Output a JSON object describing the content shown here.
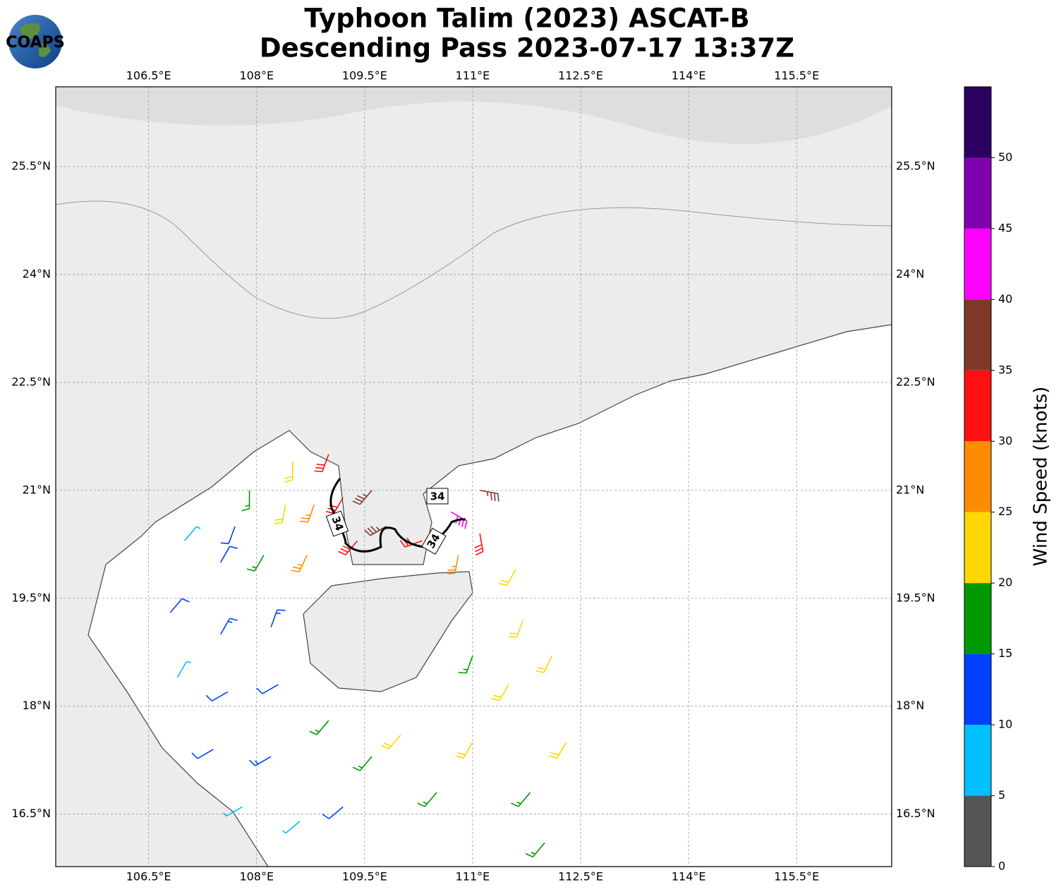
{
  "chart_data": {
    "type": "wind-barb-map",
    "title": "Typhoon Talim (2023) ASCAT-B",
    "subtitle": "Descending Pass 2023-07-17 13:37Z",
    "logo": "COAPS",
    "xlim": [
      105.21,
      116.82
    ],
    "ylim": [
      15.77,
      26.61
    ],
    "xticks": [
      {
        "value": 106.5,
        "label": "106.5°E"
      },
      {
        "value": 108,
        "label": "108°E"
      },
      {
        "value": 109.5,
        "label": "109.5°E"
      },
      {
        "value": 111,
        "label": "111°E"
      },
      {
        "value": 112.5,
        "label": "112.5°E"
      },
      {
        "value": 114,
        "label": "114°E"
      },
      {
        "value": 115.5,
        "label": "115.5°E"
      }
    ],
    "yticks": [
      {
        "value": 16.5,
        "label": "16.5°N"
      },
      {
        "value": 18,
        "label": "18°N"
      },
      {
        "value": 19.5,
        "label": "19.5°N"
      },
      {
        "value": 21,
        "label": "21°N"
      },
      {
        "value": 22.5,
        "label": "22.5°N"
      },
      {
        "value": 24,
        "label": "24°N"
      },
      {
        "value": 25.5,
        "label": "25.5°N"
      }
    ],
    "grid": true,
    "contour_level": 34,
    "colorbar": {
      "label": "Wind Speed (knots)",
      "lim": [
        0,
        55
      ],
      "ticks": [
        0,
        5,
        10,
        15,
        20,
        25,
        30,
        35,
        40,
        45,
        50
      ],
      "colors": [
        "#555555",
        "#00bfff",
        "#0040ff",
        "#009900",
        "#ffd700",
        "#ff8c00",
        "#ff1010",
        "#803828",
        "#ff00ff",
        "#8000b0",
        "#2a0060"
      ]
    },
    "wind_barbs": [
      {
        "lon": 107.0,
        "lat": 20.3,
        "speed": 8,
        "direction": 40
      },
      {
        "lon": 107.5,
        "lat": 20.0,
        "speed": 12,
        "direction": 30
      },
      {
        "lon": 106.8,
        "lat": 19.3,
        "speed": 12,
        "direction": 40
      },
      {
        "lon": 107.5,
        "lat": 19.0,
        "speed": 13,
        "direction": 30
      },
      {
        "lon": 108.2,
        "lat": 19.1,
        "speed": 13,
        "direction": 20
      },
      {
        "lon": 106.9,
        "lat": 18.4,
        "speed": 8,
        "direction": 30
      },
      {
        "lon": 107.6,
        "lat": 18.2,
        "speed": 12,
        "direction": 240
      },
      {
        "lon": 108.3,
        "lat": 18.3,
        "speed": 12,
        "direction": 240
      },
      {
        "lon": 107.4,
        "lat": 17.4,
        "speed": 12,
        "direction": 240
      },
      {
        "lon": 108.2,
        "lat": 17.3,
        "speed": 13,
        "direction": 240
      },
      {
        "lon": 107.8,
        "lat": 16.6,
        "speed": 8,
        "direction": 240
      },
      {
        "lon": 108.6,
        "lat": 16.4,
        "speed": 8,
        "direction": 230
      },
      {
        "lon": 109.2,
        "lat": 16.6,
        "speed": 12,
        "direction": 230
      },
      {
        "lon": 109.0,
        "lat": 17.8,
        "speed": 17,
        "direction": 220
      },
      {
        "lon": 109.6,
        "lat": 17.3,
        "speed": 18,
        "direction": 220
      },
      {
        "lon": 110.0,
        "lat": 17.6,
        "speed": 22,
        "direction": 220
      },
      {
        "lon": 110.5,
        "lat": 16.8,
        "speed": 18,
        "direction": 220
      },
      {
        "lon": 111.0,
        "lat": 17.5,
        "speed": 22,
        "direction": 210
      },
      {
        "lon": 111.5,
        "lat": 18.3,
        "speed": 22,
        "direction": 210
      },
      {
        "lon": 111.8,
        "lat": 16.8,
        "speed": 18,
        "direction": 220
      },
      {
        "lon": 112.0,
        "lat": 16.1,
        "speed": 18,
        "direction": 220
      },
      {
        "lon": 112.3,
        "lat": 17.5,
        "speed": 22,
        "direction": 210
      },
      {
        "lon": 111.0,
        "lat": 18.7,
        "speed": 18,
        "direction": 200
      },
      {
        "lon": 111.7,
        "lat": 19.2,
        "speed": 22,
        "direction": 200
      },
      {
        "lon": 112.1,
        "lat": 18.7,
        "speed": 22,
        "direction": 205
      },
      {
        "lon": 111.6,
        "lat": 19.9,
        "speed": 22,
        "direction": 210
      },
      {
        "lon": 107.9,
        "lat": 21.0,
        "speed": 17,
        "direction": 180
      },
      {
        "lon": 108.4,
        "lat": 20.8,
        "speed": 22,
        "direction": 190
      },
      {
        "lon": 108.8,
        "lat": 20.8,
        "speed": 27,
        "direction": 200
      },
      {
        "lon": 109.2,
        "lat": 20.9,
        "speed": 32,
        "direction": 210
      },
      {
        "lon": 109.6,
        "lat": 21.0,
        "speed": 37,
        "direction": 220
      },
      {
        "lon": 109.8,
        "lat": 20.5,
        "speed": 37,
        "direction": 240
      },
      {
        "lon": 110.3,
        "lat": 20.3,
        "speed": 32,
        "direction": 250
      },
      {
        "lon": 110.7,
        "lat": 20.7,
        "speed": 42,
        "direction": 120
      },
      {
        "lon": 111.1,
        "lat": 21.0,
        "speed": 37,
        "direction": 100
      },
      {
        "lon": 111.1,
        "lat": 20.4,
        "speed": 32,
        "direction": 170
      },
      {
        "lon": 110.8,
        "lat": 20.1,
        "speed": 27,
        "direction": 190
      },
      {
        "lon": 109.4,
        "lat": 20.3,
        "speed": 32,
        "direction": 220
      },
      {
        "lon": 108.5,
        "lat": 21.4,
        "speed": 22,
        "direction": 180
      },
      {
        "lon": 109.0,
        "lat": 21.5,
        "speed": 32,
        "direction": 200
      },
      {
        "lon": 108.1,
        "lat": 20.1,
        "speed": 17,
        "direction": 210
      },
      {
        "lon": 107.7,
        "lat": 20.5,
        "speed": 12,
        "direction": 200
      },
      {
        "lon": 108.7,
        "lat": 20.1,
        "speed": 27,
        "direction": 205
      }
    ]
  }
}
